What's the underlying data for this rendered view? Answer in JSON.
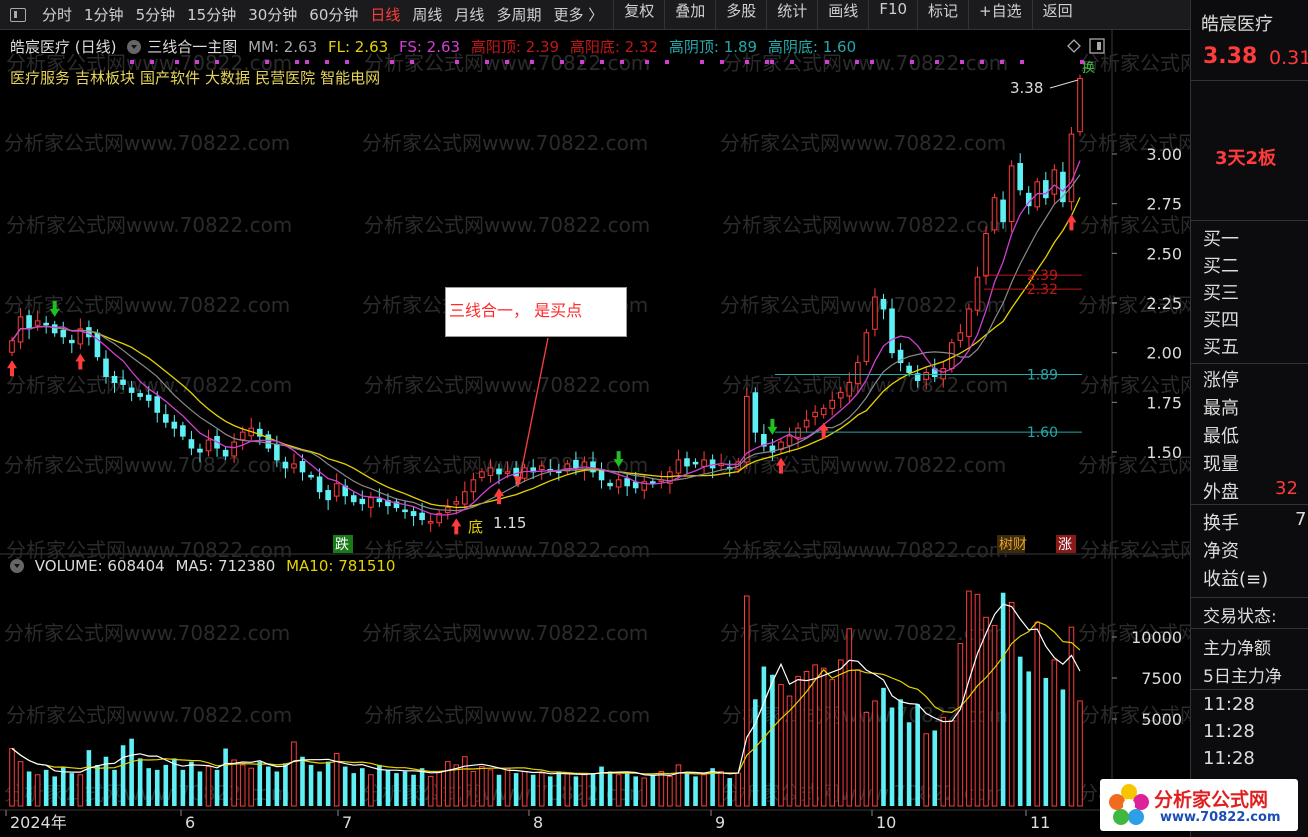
{
  "toolbar": {
    "items": [
      "分时",
      "1分钟",
      "5分钟",
      "15分钟",
      "30分钟",
      "60分钟",
      "日线",
      "周线",
      "月线",
      "多周期",
      "更多 〉"
    ],
    "active_index": 6,
    "tools": [
      "复权",
      "叠加",
      "多股",
      "统计",
      "画线",
      "F10",
      "标记",
      "+自选",
      "返回"
    ]
  },
  "right_panel": {
    "stock_name": "皓宸医疗",
    "price": "3.38",
    "change": "0.31",
    "limit_info": "3天2板",
    "order_book": [
      "买一",
      "买二",
      "买三",
      "买四",
      "买五"
    ],
    "stats": [
      "涨停",
      "最高",
      "最低",
      "现量",
      "外盘"
    ],
    "outer_value": "32",
    "stats2": [
      "换手",
      "净资",
      "收益(≡)"
    ],
    "turnover_value": "7",
    "trade_state_label": "交易状态:",
    "fund_flow": [
      "主力净额",
      "5日主力净"
    ],
    "times": [
      "11:28",
      "11:28",
      "11:28"
    ]
  },
  "chart_header": {
    "title": "皓宸医疗 (日线)",
    "indicator": "三线合一主图",
    "mm_label": "MM: 2.63",
    "fl_label": "FL: 2.63",
    "fs_label": "FS: 2.63",
    "high_yang_top": "高阳顶: 2.39",
    "high_yang_bottom": "高阳底: 2.32",
    "high_yin_top": "高阴顶: 1.89",
    "high_yin_bottom": "高阴底: 1.60"
  },
  "tags": [
    "医疗服务",
    "吉林板块",
    "国产软件",
    "大数据",
    "民营医院",
    "智能电网"
  ],
  "annotation": "三线合一， 是买点",
  "markers": {
    "low_price": "1.15",
    "last_price": "3.38",
    "di": "底",
    "die": "跌",
    "zhang": "涨",
    "lacai": "树财",
    "huan": "换",
    "level_239": "2.39",
    "level_232": "2.32",
    "level_189": "1.89",
    "level_160": "1.60"
  },
  "volume_legend": {
    "volume": "VOLUME: 608404",
    "ma5": "MA5: 712380",
    "ma10": "MA10: 781510"
  },
  "watermark": "分析家公式网www.70822.com",
  "logo": {
    "text": "分析家公式网",
    "url": "www.70822.com"
  },
  "colors": {
    "up": "#ff3b3b",
    "down": "#5ff0f5",
    "ma_yellow": "#e6d200",
    "ma_magenta": "#d040d0",
    "ma_gray": "#8a8a8a"
  },
  "chart_data": {
    "type": "candlestick",
    "price_axis": {
      "ticks": [
        3.0,
        2.75,
        2.5,
        2.25,
        2.0,
        1.75,
        1.5
      ],
      "tick_labels": [
        "3.00",
        "2.75",
        "2.50",
        "2.25",
        "2.00",
        "1.75",
        "1.50"
      ],
      "range": [
        1.05,
        3.5
      ]
    },
    "volume_axis": {
      "ticks": [
        10000,
        7500,
        5000
      ],
      "tick_labels": [
        "10000",
        "7500",
        "5000"
      ],
      "range": [
        0,
        12500
      ]
    },
    "x_labels": [
      "2024年",
      "6",
      "7",
      "8",
      "9",
      "10",
      "11"
    ],
    "closes": [
      2.06,
      2.18,
      2.12,
      2.16,
      2.14,
      2.1,
      2.08,
      2.05,
      2.12,
      2.08,
      1.98,
      1.88,
      1.85,
      1.84,
      1.8,
      1.78,
      1.76,
      1.7,
      1.65,
      1.62,
      1.58,
      1.52,
      1.5,
      1.56,
      1.52,
      1.48,
      1.55,
      1.6,
      1.62,
      1.58,
      1.52,
      1.46,
      1.42,
      1.44,
      1.4,
      1.38,
      1.3,
      1.26,
      1.34,
      1.28,
      1.25,
      1.24,
      1.27,
      1.25,
      1.23,
      1.22,
      1.2,
      1.18,
      1.16,
      1.15,
      1.19,
      1.22,
      1.25,
      1.3,
      1.36,
      1.4,
      1.42,
      1.39,
      1.4,
      1.38,
      1.42,
      1.4,
      1.43,
      1.41,
      1.4,
      1.44,
      1.42,
      1.45,
      1.4,
      1.36,
      1.33,
      1.36,
      1.33,
      1.32,
      1.35,
      1.34,
      1.36,
      1.4,
      1.46,
      1.43,
      1.44,
      1.46,
      1.42,
      1.44,
      1.42,
      1.45,
      1.78,
      1.6,
      1.53,
      1.5,
      1.55,
      1.58,
      1.62,
      1.66,
      1.7,
      1.72,
      1.76,
      1.8,
      1.85,
      1.95,
      2.1,
      2.28,
      2.22,
      2.0,
      1.95,
      1.9,
      1.86,
      1.9,
      1.88,
      1.92,
      2.05,
      2.1,
      2.22,
      2.38,
      2.6,
      2.78,
      2.66,
      2.94,
      2.82,
      2.74,
      2.86,
      2.78,
      2.92,
      2.76,
      3.1,
      3.38
    ],
    "volumes": [
      3200,
      2400,
      1800,
      1600,
      1900,
      1500,
      2100,
      1700,
      1600,
      3100,
      2200,
      2700,
      1900,
      3400,
      3800,
      2600,
      2000,
      1900,
      2200,
      2600,
      1900,
      2400,
      1800,
      2100,
      1900,
      3200,
      2500,
      2200,
      2000,
      2400,
      2100,
      1800,
      2300,
      3600,
      2700,
      2200,
      1800,
      2400,
      2900,
      2100,
      1700,
      2000,
      1600,
      2200,
      1900,
      1700,
      1800,
      1600,
      2000,
      1500,
      1800,
      2400,
      2200,
      2700,
      1800,
      2100,
      1900,
      1600,
      2000,
      1700,
      1800,
      1600,
      1700,
      1500,
      1800,
      1700,
      1500,
      1600,
      1700,
      2100,
      1800,
      1600,
      1700,
      1500,
      1400,
      1600,
      1800,
      1500,
      2200,
      1700,
      1500,
      1600,
      2000,
      1800,
      1400,
      1700,
      12500,
      6200,
      8200,
      7700,
      7100,
      6400,
      7600,
      7900,
      8300,
      8100,
      7400,
      8600,
      10500,
      8000,
      5400,
      6100,
      6900,
      5700,
      6200,
      4800,
      5900,
      4100,
      4300,
      5100,
      4900,
      9600,
      12800,
      12600,
      11200,
      10700,
      12700,
      12100,
      8800,
      7900,
      10900,
      7500,
      8600,
      6800,
      10600,
      6100
    ],
    "ma_lines": [
      "MM",
      "FL",
      "FS"
    ]
  }
}
